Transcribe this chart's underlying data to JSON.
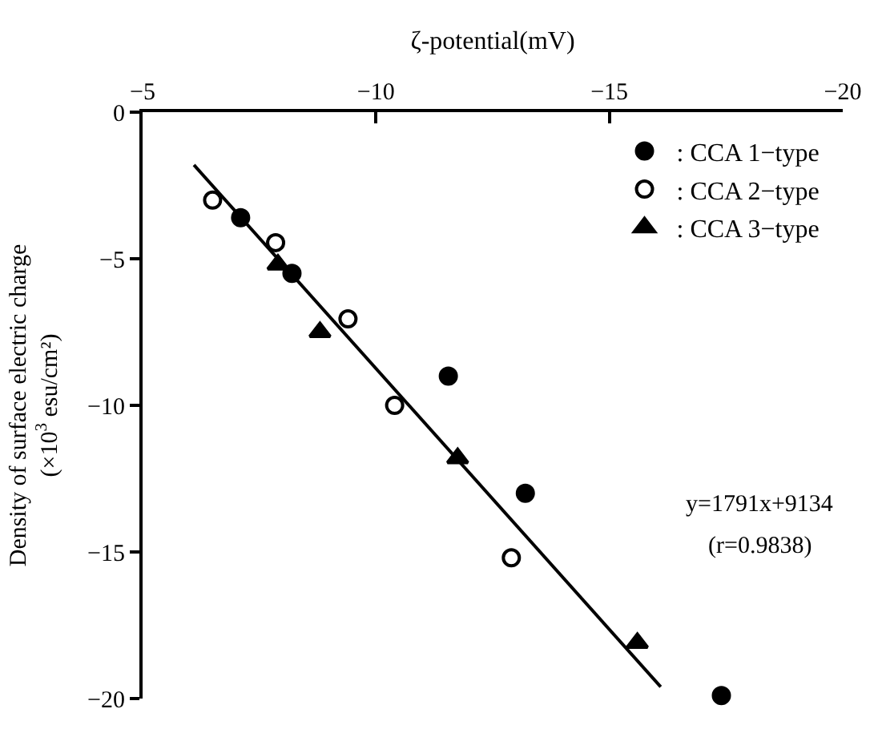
{
  "chart_data": {
    "type": "scatter",
    "xlabel": "ζ-potential(mV)",
    "ylabel": "Density of surface electric charge\n(×10$^{3}$ esu/cm²)",
    "xlim": [
      -5,
      -20
    ],
    "xticks": [
      {
        "value": -5,
        "label": "−5"
      },
      {
        "value": -10,
        "label": "−10"
      },
      {
        "value": -15,
        "label": "−15"
      },
      {
        "value": -20,
        "label": "−20"
      }
    ],
    "ylim": [
      -20,
      0
    ],
    "yticks": [
      {
        "value": 0,
        "label": "0"
      },
      {
        "value": -5,
        "label": "−5"
      },
      {
        "value": -10,
        "label": "−10"
      },
      {
        "value": -15,
        "label": "−15"
      },
      {
        "value": -20,
        "label": "−20"
      }
    ],
    "series": [
      {
        "name": ": CCA 1−type",
        "marker": "circle",
        "color": "#000000",
        "x": [
          -7.1,
          -8.2,
          -11.55,
          -13.2,
          -17.4
        ],
        "values": [
          -3.6,
          -5.5,
          -9.0,
          -13.0,
          -19.9
        ]
      },
      {
        "name": ": CCA 2−type",
        "marker": "circle-open",
        "color": "#000000",
        "x": [
          -6.5,
          -7.85,
          -9.4,
          -10.4,
          -12.9
        ],
        "values": [
          -3.0,
          -4.45,
          -7.05,
          -10.0,
          -15.2
        ]
      },
      {
        "name": ": CCA 3−type",
        "marker": "triangle",
        "color": "#000000",
        "x": [
          -7.9,
          -8.8,
          -11.75,
          -15.6
        ],
        "values": [
          -5.2,
          -7.5,
          -11.8,
          -18.1
        ]
      },
      {
        "type": "line",
        "marker": "none",
        "line_style": "solid",
        "color": "#000000",
        "x": [
          -6.1,
          -16.1
        ],
        "values": [
          -1.8,
          -19.6
        ]
      }
    ],
    "annotations": [
      "y=1791x+9134",
      "(r=0.9838)"
    ],
    "legend": "top right"
  }
}
